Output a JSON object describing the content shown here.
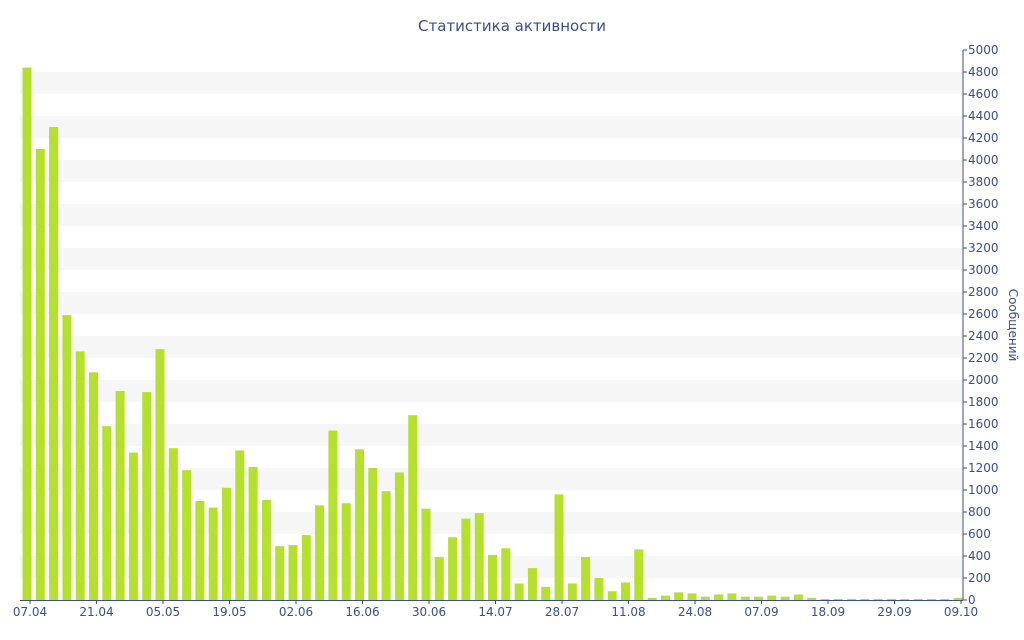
{
  "chart_data": {
    "type": "bar",
    "title": "Статистика активности",
    "ylabel": "Сообщений",
    "xlabel": "",
    "ylim": [
      0,
      5000
    ],
    "y_ticks": [
      0,
      200,
      400,
      600,
      800,
      1000,
      1200,
      1400,
      1600,
      1800,
      2000,
      2200,
      2400,
      2600,
      2800,
      3000,
      3200,
      3400,
      3600,
      3800,
      4000,
      4200,
      4400,
      4600,
      4800,
      5000
    ],
    "x_tick_labels": [
      "07.04",
      "21.04",
      "05.05",
      "19.05",
      "02.06",
      "16.06",
      "30.06",
      "14.07",
      "28.07",
      "11.08",
      "24.08",
      "07.09",
      "18.09",
      "29.09",
      "09.10"
    ],
    "x_tick_bar_index": [
      0,
      5,
      10,
      15,
      20,
      25,
      30,
      35,
      40,
      45,
      50,
      55,
      60,
      65,
      70
    ],
    "y_axis_position": "right",
    "grid": "alternating-bands",
    "legend": "none",
    "bar_color": "#b5e02d",
    "values": [
      4840,
      4100,
      4300,
      2590,
      2260,
      2070,
      1580,
      1900,
      1340,
      1890,
      2280,
      1380,
      1180,
      900,
      840,
      1020,
      1360,
      1210,
      910,
      490,
      500,
      590,
      860,
      1540,
      880,
      1370,
      1200,
      990,
      1160,
      1680,
      830,
      390,
      570,
      740,
      790,
      410,
      470,
      150,
      290,
      120,
      960,
      150,
      390,
      200,
      80,
      160,
      460,
      20,
      40,
      70,
      60,
      30,
      50,
      60,
      30,
      30,
      40,
      30,
      50,
      20,
      10,
      10,
      10,
      10,
      10,
      10,
      10,
      10,
      10,
      10,
      20
    ]
  }
}
